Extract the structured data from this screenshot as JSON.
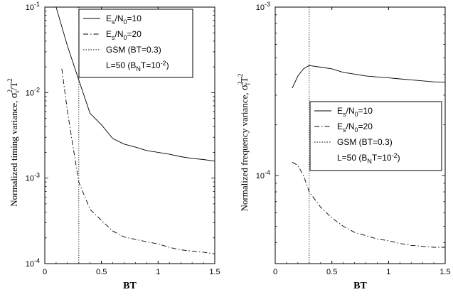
{
  "chart_data": [
    {
      "type": "line",
      "xlabel": "BT",
      "ylabel": "Normalized timing variance,",
      "ylabel_symbol": {
        "base": "σ",
        "sub": "τ",
        "sup": "2",
        "div": "/T",
        "div_sup": "2"
      },
      "scale_y": "log",
      "xlim": [
        0,
        1.5
      ],
      "ylim": [
        0.0001,
        0.1
      ],
      "x_ticks": [
        "0",
        "0.5",
        "1",
        "1.5"
      ],
      "y_ticks": [
        {
          "base": "10",
          "exp": "-4"
        },
        {
          "base": "10",
          "exp": "-3"
        },
        {
          "base": "10",
          "exp": "-2"
        },
        {
          "base": "10",
          "exp": "-1"
        }
      ],
      "vline": {
        "x": 0.3,
        "style": "dotted"
      },
      "series": [
        {
          "name": "Es/N0=10",
          "style": "solid",
          "x": [
            0.1,
            0.2,
            0.3,
            0.4,
            0.5,
            0.6,
            0.7,
            0.8,
            0.9,
            1.0,
            1.1,
            1.2,
            1.3,
            1.4,
            1.5
          ],
          "y": [
            0.1,
            0.035,
            0.014,
            0.0057,
            0.0042,
            0.0029,
            0.0025,
            0.0023,
            0.0021,
            0.002,
            0.0019,
            0.00178,
            0.0017,
            0.00165,
            0.00158
          ]
        },
        {
          "name": "Es/N0=20",
          "style": "dashdot",
          "x": [
            0.15,
            0.2,
            0.25,
            0.3,
            0.4,
            0.5,
            0.6,
            0.7,
            0.8,
            0.9,
            1.0,
            1.1,
            1.2,
            1.3,
            1.4,
            1.5
          ],
          "y": [
            0.019,
            0.006,
            0.0023,
            0.0009,
            0.00043,
            0.00032,
            0.00024,
            0.000205,
            0.000192,
            0.00018,
            0.00017,
            0.000155,
            0.000145,
            0.00014,
            0.000136,
            0.00013
          ]
        }
      ],
      "legend": {
        "position": "top-right",
        "entries": [
          {
            "text": "E",
            "sub1": "s",
            "mid": "/N",
            "sub2": "0",
            "end": "=10",
            "style": "solid"
          },
          {
            "text": "E",
            "sub1": "s",
            "mid": "/N",
            "sub2": "0",
            "end": "=20",
            "style": "dashdot"
          },
          {
            "text": "GSM (BT=0.3)",
            "style": "dotted"
          },
          {
            "text": "L=50 (B",
            "sub1": "N",
            "mid": "T=10",
            "sup": "-2",
            "end": ")",
            "style": "none"
          }
        ]
      }
    },
    {
      "type": "line",
      "xlabel": "BT",
      "ylabel": "Normalized frequency variance,",
      "ylabel_symbol": {
        "base": "σ",
        "sub": "f",
        "sup": "2",
        "div": "T",
        "div_sup": "2"
      },
      "scale_y": "log",
      "xlim": [
        0,
        1.5
      ],
      "ylim": [
        3e-05,
        0.001
      ],
      "x_ticks": [
        "0",
        "0.5",
        "1",
        "1.5"
      ],
      "y_ticks": [
        {
          "base": "10",
          "exp": "-4"
        },
        {
          "base": "10",
          "exp": "-3"
        }
      ],
      "vline": {
        "x": 0.3,
        "style": "dotted"
      },
      "series": [
        {
          "name": "Es/N0=10",
          "style": "solid",
          "x": [
            0.15,
            0.2,
            0.25,
            0.3,
            0.4,
            0.5,
            0.6,
            0.7,
            0.8,
            0.9,
            1.0,
            1.1,
            1.2,
            1.3,
            1.4,
            1.5
          ],
          "y": [
            0.00033,
            0.00039,
            0.00043,
            0.00045,
            0.00044,
            0.00043,
            0.00041,
            0.0004,
            0.00039,
            0.000385,
            0.00038,
            0.000375,
            0.00037,
            0.000365,
            0.00036,
            0.000358
          ]
        },
        {
          "name": "Es/N0=20",
          "style": "dashdot",
          "x": [
            0.15,
            0.2,
            0.25,
            0.3,
            0.4,
            0.5,
            0.6,
            0.7,
            0.8,
            0.9,
            1.0,
            1.1,
            1.2,
            1.3,
            1.4,
            1.5
          ],
          "y": [
            0.00012,
            0.000115,
            0.0001,
            8e-05,
            6.5e-05,
            5.6e-05,
            5e-05,
            4.6e-05,
            4.4e-05,
            4.2e-05,
            4.1e-05,
            3.95e-05,
            3.85e-05,
            3.8e-05,
            3.75e-05,
            3.75e-05
          ]
        }
      ],
      "legend": {
        "position": "center-right",
        "entries": [
          {
            "text": "E",
            "sub1": "s",
            "mid": "/N",
            "sub2": "0",
            "end": "=10",
            "style": "solid"
          },
          {
            "text": "E",
            "sub1": "s",
            "mid": "/N",
            "sub2": "0",
            "end": "=20",
            "style": "dashdot"
          },
          {
            "text": "GSM (BT=0.3)",
            "style": "dotted"
          },
          {
            "text": "L=50 (B",
            "sub1": "N",
            "mid": "T=10",
            "sup": "-2",
            "end": ")",
            "style": "none"
          }
        ]
      }
    }
  ]
}
